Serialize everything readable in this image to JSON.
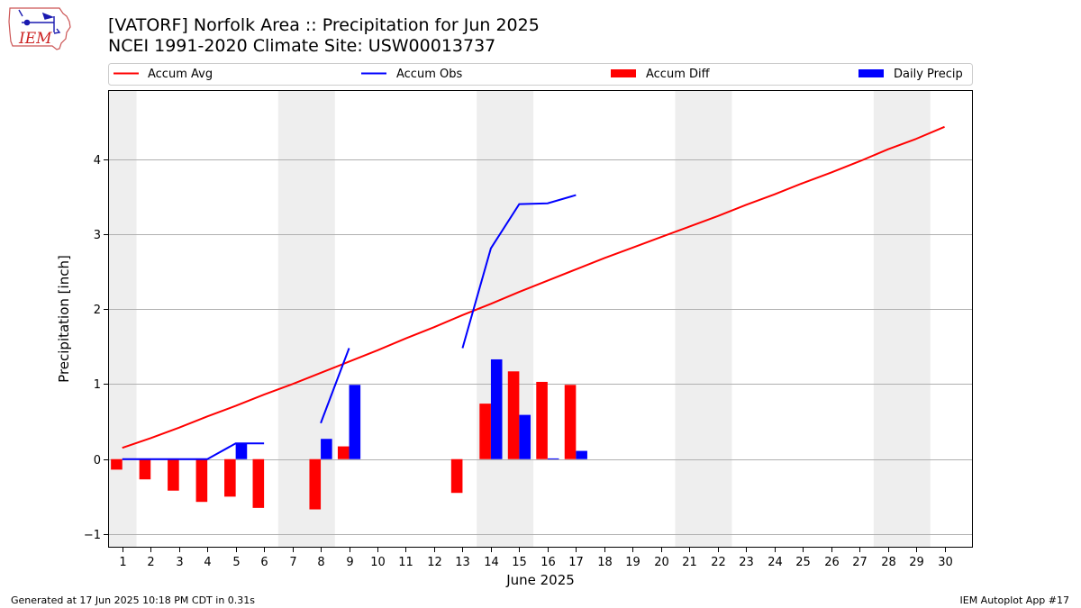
{
  "logo": {
    "text": "IEM",
    "color": "#cc2222",
    "name": "iem-logo"
  },
  "title_line1": "[VATORF] Norfolk Area :: Precipitation for Jun 2025",
  "title_line2": "NCEI 1991-2020 Climate Site: USW00013737",
  "footer_left": "Generated at 17 Jun 2025 10:18 PM CDT in 0.31s",
  "footer_right": "IEM Autoplot App #17",
  "chart_data": {
    "type": "bar",
    "xlabel": "June 2025",
    "ylabel": "Precipitation [inch]",
    "xlim": [
      0.5,
      31
    ],
    "ylim": [
      -1.18,
      4.92
    ],
    "yticks": [
      -1,
      0,
      1,
      2,
      3,
      4
    ],
    "days": [
      1,
      2,
      3,
      4,
      5,
      6,
      7,
      8,
      9,
      10,
      11,
      12,
      13,
      14,
      15,
      16,
      17,
      18,
      19,
      20,
      21,
      22,
      23,
      24,
      25,
      26,
      27,
      28,
      29,
      30
    ],
    "weekend_bands": [
      [
        0.5,
        1.5
      ],
      [
        6.5,
        8.5
      ],
      [
        13.5,
        15.5
      ],
      [
        20.5,
        22.5
      ],
      [
        27.5,
        29.5
      ]
    ],
    "grid": "horizontal",
    "legend_position": "top",
    "legend": [
      "Accum Avg",
      "Accum Obs",
      "Accum Diff",
      "Daily Precip"
    ],
    "colors": {
      "avg": "#ff0000",
      "obs": "#0000ff",
      "diff": "#ff0000",
      "daily": "#0000ff",
      "band": "#eeeeee",
      "grid": "#b0b0b0"
    },
    "accum_avg": [
      0.15,
      0.28,
      0.42,
      0.57,
      0.71,
      0.86,
      1.0,
      1.15,
      1.3,
      1.45,
      1.61,
      1.76,
      1.92,
      2.07,
      2.23,
      2.38,
      2.53,
      2.68,
      2.82,
      2.96,
      3.1,
      3.24,
      3.39,
      3.53,
      3.68,
      3.82,
      3.97,
      4.13,
      4.27,
      4.43
    ],
    "accum_obs_segments": [
      {
        "x": [
          1,
          2,
          3,
          4,
          5,
          6
        ],
        "y": [
          0.0,
          0.0,
          0.0,
          0.0,
          0.21,
          0.21
        ]
      },
      {
        "x": [
          8,
          9
        ],
        "y": [
          0.48,
          1.48
        ]
      },
      {
        "x": [
          13,
          14,
          15,
          16,
          17
        ],
        "y": [
          1.48,
          2.81,
          3.4,
          3.41,
          3.52
        ]
      }
    ],
    "accum_diff": [
      {
        "day": 1,
        "value": -0.14
      },
      {
        "day": 2,
        "value": -0.27
      },
      {
        "day": 3,
        "value": -0.42
      },
      {
        "day": 4,
        "value": -0.57
      },
      {
        "day": 5,
        "value": -0.5
      },
      {
        "day": 6,
        "value": -0.65
      },
      {
        "day": 8,
        "value": -0.67
      },
      {
        "day": 9,
        "value": 0.17
      },
      {
        "day": 13,
        "value": -0.45
      },
      {
        "day": 14,
        "value": 0.74
      },
      {
        "day": 15,
        "value": 1.17
      },
      {
        "day": 16,
        "value": 1.03
      },
      {
        "day": 17,
        "value": 0.99
      }
    ],
    "daily_precip": [
      {
        "day": 5,
        "value": 0.21
      },
      {
        "day": 8,
        "value": 0.27
      },
      {
        "day": 9,
        "value": 0.99
      },
      {
        "day": 14,
        "value": 1.33
      },
      {
        "day": 15,
        "value": 0.59
      },
      {
        "day": 16,
        "value": 0.01
      },
      {
        "day": 17,
        "value": 0.11
      }
    ]
  }
}
